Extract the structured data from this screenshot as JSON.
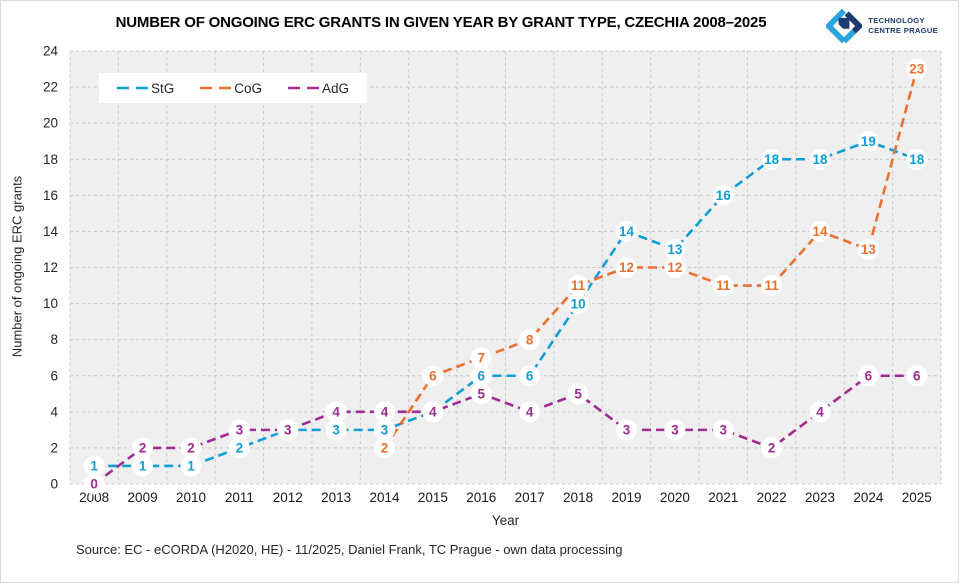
{
  "logo": {
    "line1": "TECHNOLOGY",
    "line2": "CENTRE PRAGUE",
    "navy": "#1B3C6D",
    "light_blue": "#2BA5DF"
  },
  "footer": {
    "source": "Source: EC - eCORDA (H2020, HE) - 11/2025, Daniel Frank, TC Prague - own data processing"
  },
  "chart_data": {
    "type": "line",
    "title": "NUMBER OF ONGOING ERC GRANTS IN GIVEN YEAR BY GRANT TYPE, CZECHIA 2008–2025",
    "xlabel": "Year",
    "ylabel": "Number of ongoing ERC grants",
    "ylim": [
      0,
      24
    ],
    "yticks": [
      0,
      2,
      4,
      6,
      8,
      10,
      12,
      14,
      16,
      18,
      20,
      22,
      24
    ],
    "grid": "dashed",
    "legend_position": "top-left",
    "plot_bg": "#EFEFEF",
    "grid_color": "#C9C9C9",
    "categories": [
      "2008",
      "2009",
      "2010",
      "2011",
      "2012",
      "2013",
      "2014",
      "2015",
      "2016",
      "2017",
      "2018",
      "2019",
      "2020",
      "2021",
      "2022",
      "2023",
      "2024",
      "2025"
    ],
    "series": [
      {
        "name": "StG",
        "color": "#0F9ED5",
        "values": [
          1,
          1,
          1,
          2,
          3,
          3,
          3,
          4,
          6,
          6,
          10,
          14,
          13,
          16,
          18,
          18,
          19,
          18
        ]
      },
      {
        "name": "CoG",
        "color": "#E97132",
        "values": [
          null,
          null,
          null,
          null,
          null,
          null,
          2,
          6,
          7,
          8,
          11,
          12,
          12,
          11,
          11,
          14,
          13,
          23
        ]
      },
      {
        "name": "AdG",
        "color": "#A02B93",
        "values": [
          0,
          2,
          2,
          3,
          3,
          4,
          4,
          4,
          5,
          4,
          5,
          3,
          3,
          3,
          2,
          4,
          6,
          6
        ]
      }
    ]
  }
}
